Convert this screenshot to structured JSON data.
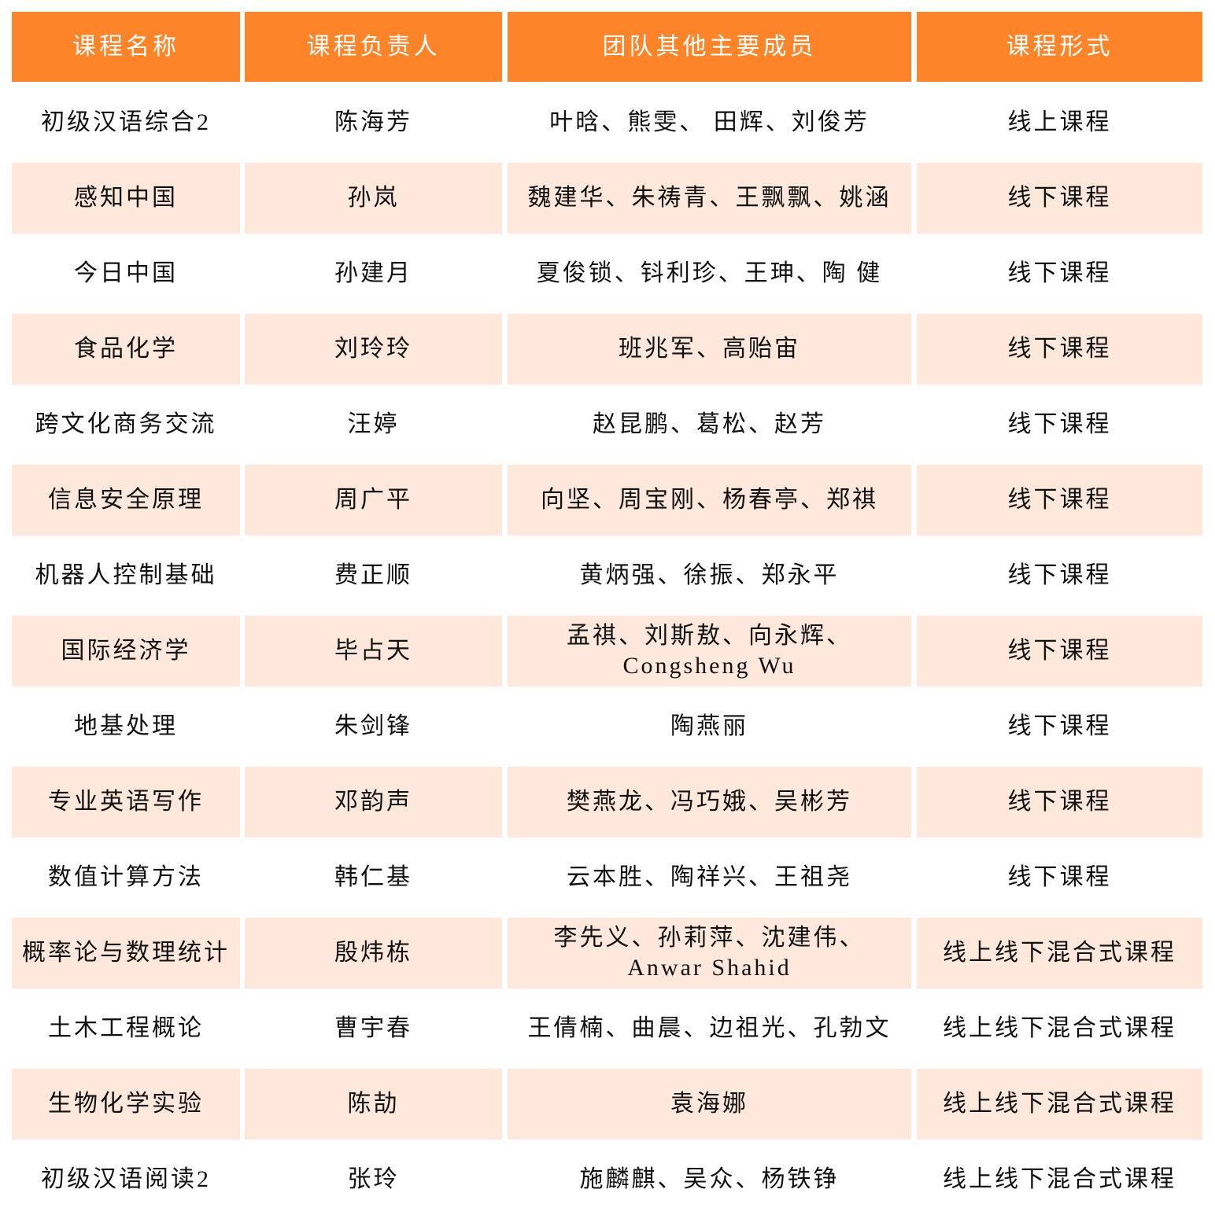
{
  "colors": {
    "header_bg": "#FD8428",
    "header_text": "#FFFFFF",
    "alt_row_bg": "#FDE8DB"
  },
  "headers": [
    "课程名称",
    "课程负责人",
    "团队其他主要成员",
    "课程形式"
  ],
  "rows": [
    [
      "初级汉语综合2",
      "陈海芳",
      "叶晗、熊雯、  田辉、刘俊芳",
      "线上课程"
    ],
    [
      "感知中国",
      "孙岚",
      "魏建华、朱祷青、王飘飘、姚涵",
      "线下课程"
    ],
    [
      "今日中国",
      "孙建月",
      "夏俊锁、钭利珍、王珅、陶  健",
      "线下课程"
    ],
    [
      "食品化学",
      "刘玲玲",
      "班兆军、高贻宙",
      "线下课程"
    ],
    [
      "跨文化商务交流",
      "汪婷",
      "赵昆鹏、葛松、赵芳",
      "线下课程"
    ],
    [
      "信息安全原理",
      "周广平",
      "向坚、周宝刚、杨春亭、郑祺",
      "线下课程"
    ],
    [
      "机器人控制基础",
      "费正顺",
      "黄炳强、徐振、郑永平",
      "线下课程"
    ],
    [
      "国际经济学",
      "毕占天",
      "孟祺、刘斯敖、向永辉、\nCongsheng Wu",
      "线下课程"
    ],
    [
      "地基处理",
      "朱剑锋",
      "陶燕丽",
      "线下课程"
    ],
    [
      "专业英语写作",
      "邓韵声",
      "樊燕龙、冯巧娥、吴彬芳",
      "线下课程"
    ],
    [
      "数值计算方法",
      "韩仁基",
      "云本胜、陶祥兴、王祖尧",
      "线下课程"
    ],
    [
      "概率论与数理统计",
      "殷炜栋",
      "李先义、孙莉萍、沈建伟、\nAnwar Shahid",
      "线上线下混合式课程"
    ],
    [
      "土木工程概论",
      "曹宇春",
      "王倩楠、曲晨、边祖光、孔勃文",
      "线上线下混合式课程"
    ],
    [
      "生物化学实验",
      "陈劼",
      "袁海娜",
      "线上线下混合式课程"
    ],
    [
      "初级汉语阅读2",
      "张玲",
      "施麟麒、吴众、杨铁铮",
      "线上线下混合式课程"
    ]
  ]
}
